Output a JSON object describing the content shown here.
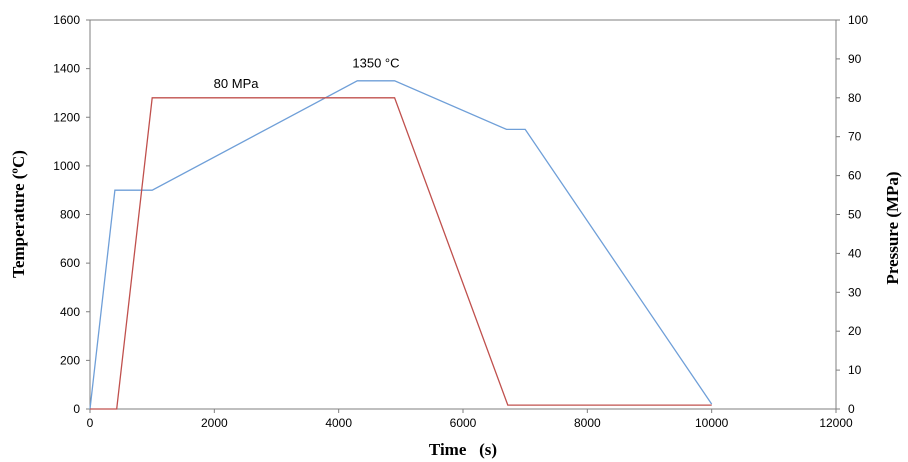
{
  "chart_data": {
    "type": "line",
    "xlabel": "Time   (s)",
    "ylabel": "Temperature (ºC)",
    "y2label": "Pressure (MPa)",
    "xlim": [
      0,
      12000
    ],
    "ylim": [
      0,
      1600
    ],
    "y2lim": [
      0,
      100
    ],
    "x_ticks": [
      "0",
      "2000",
      "4000",
      "6000",
      "8000",
      "10000",
      "12000"
    ],
    "y_ticks": [
      "0",
      "200",
      "400",
      "600",
      "800",
      "1000",
      "1200",
      "1400",
      "1600"
    ],
    "y2_ticks": [
      "0",
      "10",
      "20",
      "30",
      "40",
      "50",
      "60",
      "70",
      "80",
      "90",
      "100"
    ],
    "grid": false,
    "series": [
      {
        "axis": "left",
        "color": "#6f9fd8",
        "x": [
          0,
          400,
          1000,
          4300,
          4900,
          6700,
          7000,
          10000
        ],
        "y": [
          0,
          900,
          900,
          1350,
          1350,
          1150,
          1150,
          20
        ]
      },
      {
        "axis": "right",
        "color": "#c0504d",
        "x": [
          0,
          430,
          1000,
          4900,
          6720,
          10000
        ],
        "y": [
          0,
          0,
          80,
          80,
          1,
          1
        ]
      }
    ],
    "annotations": [
      {
        "text": "80 MPa",
        "x": 2350,
        "y": 1320
      },
      {
        "text": "1350 °C",
        "x": 4600,
        "y": 1405
      }
    ]
  }
}
